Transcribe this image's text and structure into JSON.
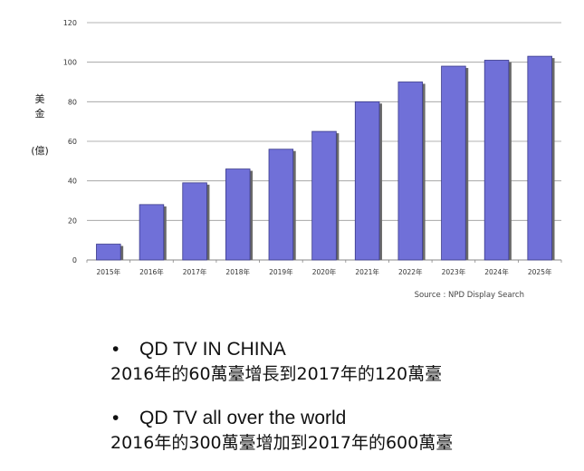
{
  "chart_data": {
    "type": "bar",
    "categories": [
      "2015年",
      "2016年",
      "2017年",
      "2018年",
      "2019年",
      "2020年",
      "2021年",
      "2022年",
      "2023年",
      "2024年",
      "2025年"
    ],
    "values": [
      8,
      28,
      39,
      46,
      56,
      65,
      80,
      90,
      98,
      101,
      103
    ],
    "ylabel": [
      "美",
      "金",
      "(億)"
    ],
    "ylim": [
      0,
      120
    ],
    "yticks": [
      0,
      20,
      40,
      60,
      80,
      100,
      120
    ],
    "grid": true,
    "bar_color": "#7070d8",
    "source": "Source : NPD Display Search"
  },
  "bullets": [
    {
      "marker": "•",
      "title": "QD TV IN CHINA",
      "detail": "2016年的60萬臺增長到2017年的120萬臺"
    },
    {
      "marker": "•",
      "title": "QD TV all over the world",
      "detail": "2016年的300萬臺增加到2017年的600萬臺"
    }
  ]
}
